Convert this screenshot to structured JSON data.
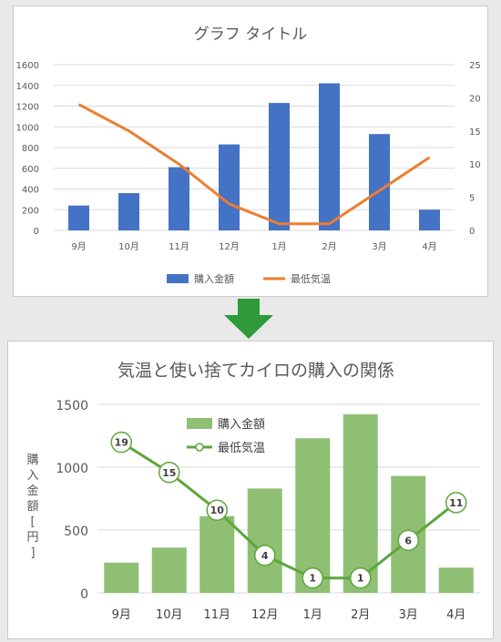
{
  "top_chart": {
    "title": "グラフ タイトル",
    "legend": [
      "購入金額",
      "最低気温"
    ],
    "left_ticks": [
      "0",
      "200",
      "400",
      "600",
      "800",
      "1000",
      "1200",
      "1400",
      "1600"
    ],
    "right_ticks": [
      "0",
      "5",
      "10",
      "15",
      "20",
      "25"
    ]
  },
  "bottom_chart": {
    "title": "気温と使い捨てカイロの購入の関係",
    "ylabel": "購入金額[円]",
    "legend": [
      "購入金額",
      "最低気温"
    ],
    "left_ticks": [
      "0",
      "500",
      "1000",
      "1500"
    ]
  },
  "colors": {
    "top_bar": "#4472c4",
    "top_line": "#ed7d31",
    "bottom_bar": "#8fbf73",
    "bottom_line": "#5ea63c",
    "arrow": "#2e9a3a"
  },
  "chart_data": [
    {
      "type": "bar",
      "title": "グラフ タイトル",
      "categories": [
        "9月",
        "10月",
        "11月",
        "12月",
        "1月",
        "2月",
        "3月",
        "4月"
      ],
      "series": [
        {
          "name": "購入金額",
          "type": "bar",
          "axis": "left",
          "values": [
            240,
            360,
            610,
            830,
            1230,
            1420,
            930,
            200
          ]
        },
        {
          "name": "最低気温",
          "type": "line",
          "axis": "right",
          "values": [
            19,
            15,
            10,
            4,
            1,
            1,
            6,
            11
          ]
        }
      ],
      "ylim": [
        0,
        1600
      ],
      "y2lim": [
        0,
        25
      ],
      "legend": "bottom",
      "grid": true
    },
    {
      "type": "bar",
      "title": "気温と使い捨てカイロの購入の関係",
      "ylabel": "購入金額[円]",
      "categories": [
        "9月",
        "10月",
        "11月",
        "12月",
        "1月",
        "2月",
        "3月",
        "4月"
      ],
      "series": [
        {
          "name": "購入金額",
          "type": "bar",
          "axis": "left",
          "values": [
            240,
            360,
            610,
            830,
            1230,
            1420,
            930,
            200
          ]
        },
        {
          "name": "最低気温",
          "type": "line",
          "axis": "right",
          "values": [
            19,
            15,
            10,
            4,
            1,
            1,
            6,
            11
          ]
        }
      ],
      "ylim": [
        0,
        1500
      ],
      "legend": "top-center",
      "grid": true,
      "data_labels": true
    }
  ]
}
